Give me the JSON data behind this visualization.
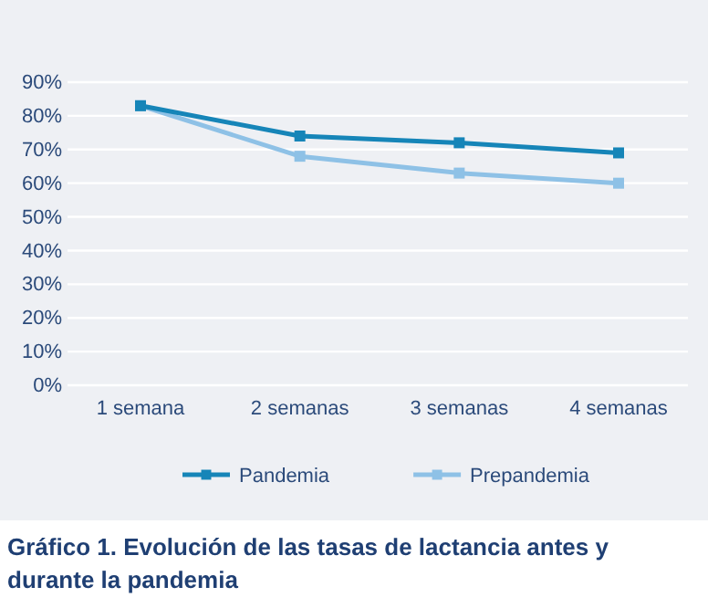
{
  "chart_data": {
    "type": "line",
    "title": "Gráfico 1. Evolución de las tasas de lactancia antes y durante la pandemia",
    "categories": [
      "1 semana",
      "2 semanas",
      "3 semanas",
      "4 semanas"
    ],
    "series": [
      {
        "name": "Pandemia",
        "color": "#1685b8",
        "values": [
          83,
          74,
          72,
          69
        ]
      },
      {
        "name": "Prepandemia",
        "color": "#8ec1e6",
        "values": [
          83,
          68,
          63,
          60
        ]
      }
    ],
    "ylim": [
      0,
      90
    ],
    "yticks": [
      {
        "value": 0,
        "label": "0%"
      },
      {
        "value": 10,
        "label": "10%"
      },
      {
        "value": 20,
        "label": "20%"
      },
      {
        "value": 30,
        "label": "30%"
      },
      {
        "value": 40,
        "label": "40%"
      },
      {
        "value": 50,
        "label": "50%"
      },
      {
        "value": 60,
        "label": "60%"
      },
      {
        "value": 70,
        "label": "70%"
      },
      {
        "value": 80,
        "label": "80%"
      },
      {
        "value": 90,
        "label": "90%"
      }
    ],
    "grid": "y",
    "legend": "bottom",
    "marker": "square",
    "line_style": "solid"
  }
}
